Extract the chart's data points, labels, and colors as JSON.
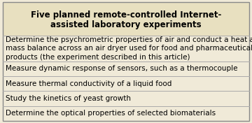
{
  "title_line1": "Five planned remote-controlled Internet-",
  "title_line2": "assisted laboratory experiments",
  "rows": [
    "Determine the psychrometric properties of air and conduct a heat and\nmass balance across an air dryer used for food and pharmaceutical\nproducts (the experiment described in this article)",
    "Measure dynamic response of sensors, such as a thermocouple",
    "Measure thermal conductivity of a liquid food",
    "Study the kinetics of yeast growth",
    "Determine the optical properties of selected biomaterials"
  ],
  "bg_color": "#f0ead8",
  "header_bg": "#e8e0c0",
  "border_color": "#888888",
  "divider_color": "#aaaaaa",
  "title_color": "#000000",
  "text_color": "#000000",
  "title_fontsize": 8.5,
  "row_fontsize": 7.5
}
